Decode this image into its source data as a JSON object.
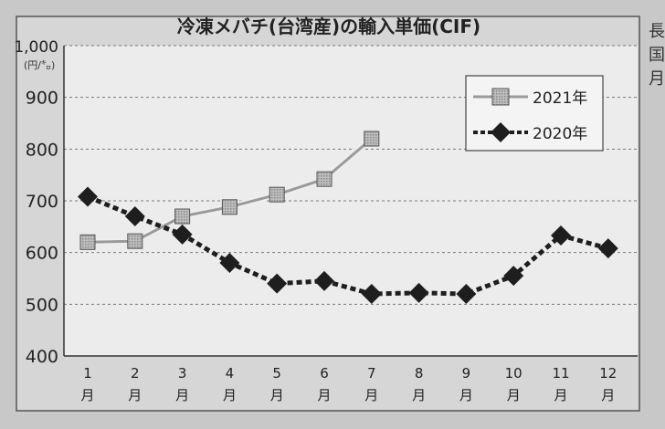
{
  "chart_data": {
    "type": "line",
    "title": "冷凍メバチ(台湾産)の輸入単価(CIF)",
    "unit_label": "(円/㌔)",
    "y_tick_labels": [
      "400",
      "500",
      "600",
      "700",
      "800",
      "900",
      "1,000"
    ],
    "y_ticks": [
      400,
      500,
      600,
      700,
      800,
      900,
      1000
    ],
    "ylim": [
      400,
      1000
    ],
    "categories": [
      "1月",
      "2月",
      "3月",
      "4月",
      "5月",
      "6月",
      "7月",
      "8月",
      "9月",
      "10月",
      "11月",
      "12月"
    ],
    "cat_nums": [
      "1",
      "2",
      "3",
      "4",
      "5",
      "6",
      "7",
      "8",
      "9",
      "10",
      "11",
      "12"
    ],
    "cat_suffix": "月",
    "grid": "horizontal dashed",
    "legend_position": "top-right",
    "series": [
      {
        "name": "2021年",
        "marker": "square",
        "color": "#9a9a9a",
        "values": [
          620,
          622,
          670,
          688,
          712,
          742,
          820,
          null,
          null,
          null,
          null,
          null
        ]
      },
      {
        "name": "2020年",
        "marker": "diamond",
        "color": "#1e1e1e",
        "values": [
          708,
          670,
          635,
          580,
          540,
          545,
          520,
          522,
          520,
          555,
          633,
          608
        ]
      }
    ]
  },
  "edge_text": [
    "長",
    "国",
    "月"
  ]
}
